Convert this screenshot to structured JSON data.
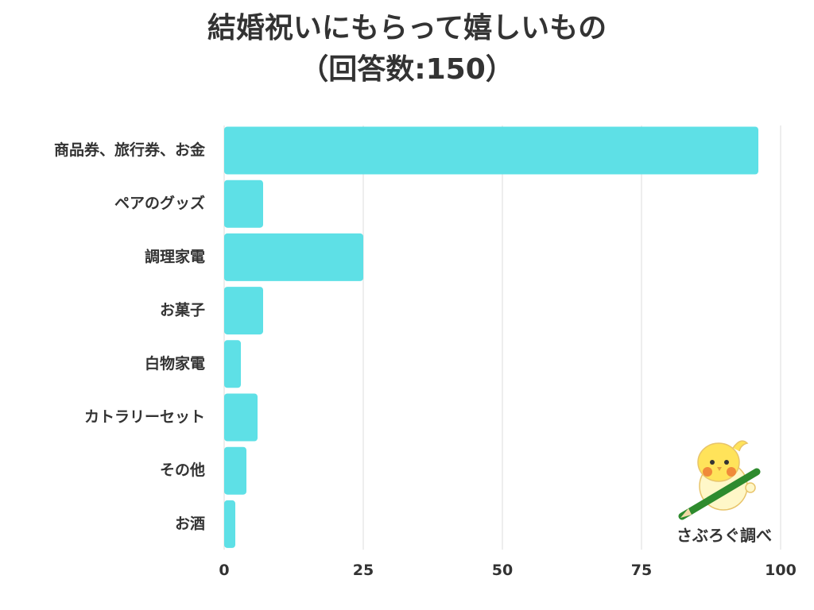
{
  "title_line1": "結婚祝いにもらって嬉しいもの",
  "title_line2": "（回答数:150）",
  "credit": "さぶろぐ調べ",
  "colors": {
    "bar": "#5ee0e6",
    "grid": "#dddddd",
    "text": "#333333"
  },
  "chart_data": {
    "type": "bar",
    "orientation": "horizontal",
    "categories": [
      "商品券、旅行券、お金",
      "ペアのグッズ",
      "調理家電",
      "お菓子",
      "白物家電",
      "カトラリーセット",
      "その他",
      "お酒"
    ],
    "values": [
      96,
      7,
      25,
      7,
      3,
      6,
      4,
      2
    ],
    "xlim": [
      0,
      100
    ],
    "xticks": [
      "0",
      "25",
      "50",
      "75",
      "100"
    ],
    "grid": "vertical"
  }
}
